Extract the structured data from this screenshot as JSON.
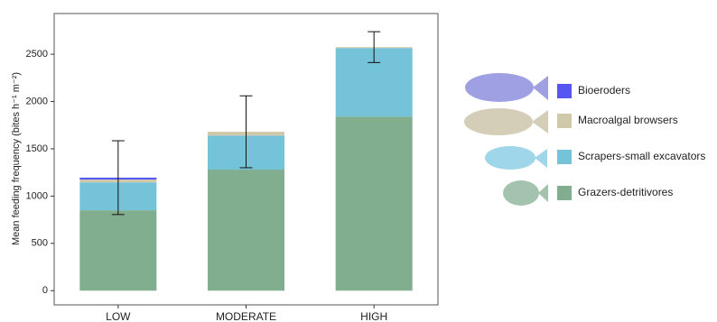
{
  "chart_data": {
    "type": "bar",
    "stacked": true,
    "y_label": "Mean feeding frequency (bites h⁻¹ m⁻²)",
    "categories": [
      "LOW",
      "MODERATE",
      "HIGH"
    ],
    "series": [
      {
        "name": "Grazers-detritivores",
        "color": "#80ae8f",
        "values": [
          850,
          1280,
          1840
        ]
      },
      {
        "name": "Scrapers-small excavators",
        "color": "#74c3d9",
        "values": [
          295,
          360,
          725
        ]
      },
      {
        "name": "Macroalgal browsers",
        "color": "#d1c8a9",
        "values": [
          30,
          40,
          10
        ]
      },
      {
        "name": "Bioeroders",
        "color": "#5656f2",
        "values": [
          20,
          0,
          0
        ]
      }
    ],
    "errors": [
      390,
      380,
      163
    ],
    "ylim": [
      -150,
      2930
    ],
    "yticks": [
      0,
      500,
      1000,
      1500,
      2000,
      2500
    ]
  }
}
